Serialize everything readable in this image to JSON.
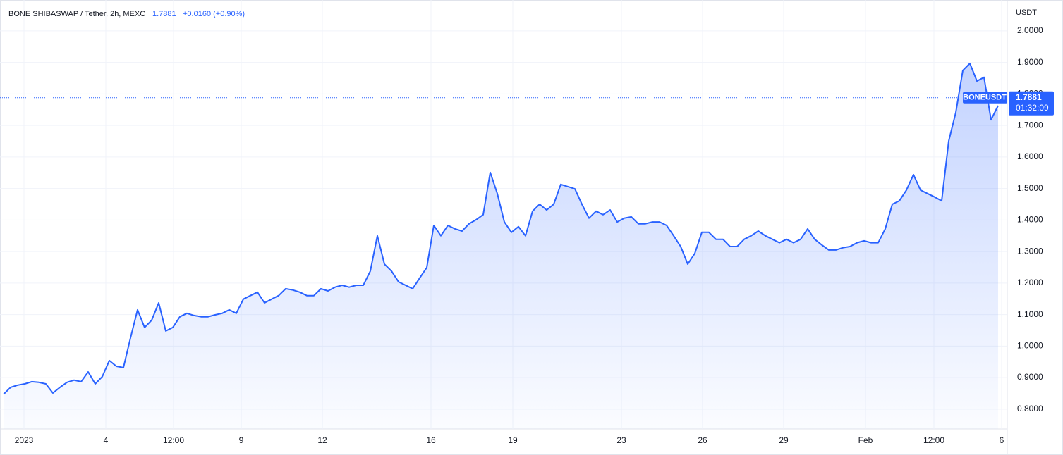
{
  "chart_data": {
    "type": "area",
    "title": "BONE SHIBASWAP / Tether, 2h, MEXC",
    "last_price": 1.7881,
    "change": "+0.0160 (+0.90%)",
    "symbol": "BONEUSDT",
    "countdown": "01:32:09",
    "y_axis_label": "USDT",
    "series": [
      {
        "name": "BONEUSDT",
        "color": "#2962ff",
        "values": [
          0.847,
          0.869,
          0.876,
          0.88,
          0.887,
          0.885,
          0.88,
          0.851,
          0.869,
          0.885,
          0.892,
          0.887,
          0.918,
          0.88,
          0.903,
          0.954,
          0.936,
          0.932,
          1.026,
          1.115,
          1.059,
          1.082,
          1.137,
          1.048,
          1.059,
          1.093,
          1.104,
          1.097,
          1.093,
          1.093,
          1.099,
          1.104,
          1.115,
          1.104,
          1.149,
          1.16,
          1.171,
          1.137,
          1.149,
          1.16,
          1.182,
          1.178,
          1.171,
          1.16,
          1.16,
          1.182,
          1.175,
          1.187,
          1.193,
          1.187,
          1.193,
          1.193,
          1.238,
          1.35,
          1.26,
          1.238,
          1.204,
          1.193,
          1.182,
          1.216,
          1.249,
          1.383,
          1.35,
          1.383,
          1.372,
          1.365,
          1.388,
          1.401,
          1.417,
          1.551,
          1.484,
          1.394,
          1.361,
          1.379,
          1.35,
          1.428,
          1.45,
          1.432,
          1.45,
          1.513,
          1.506,
          1.499,
          1.45,
          1.406,
          1.428,
          1.417,
          1.432,
          1.394,
          1.406,
          1.41,
          1.388,
          1.388,
          1.394,
          1.394,
          1.383,
          1.35,
          1.316,
          1.26,
          1.294,
          1.361,
          1.361,
          1.339,
          1.339,
          1.316,
          1.316,
          1.339,
          1.35,
          1.365,
          1.35,
          1.339,
          1.328,
          1.339,
          1.328,
          1.339,
          1.372,
          1.339,
          1.321,
          1.305,
          1.305,
          1.312,
          1.316,
          1.328,
          1.334,
          1.328,
          1.328,
          1.372,
          1.45,
          1.461,
          1.495,
          1.544,
          1.495,
          1.484,
          1.473,
          1.461,
          1.651,
          1.741,
          1.875,
          1.897,
          1.841,
          1.853,
          1.718,
          1.763
        ]
      }
    ],
    "xlim": [
      0,
      142.3
    ],
    "xticks": [
      {
        "value": 2.9,
        "label": "2023"
      },
      {
        "value": 14.5,
        "label": "4"
      },
      {
        "value": 24.1,
        "label": "12:00"
      },
      {
        "value": 33.7,
        "label": "9"
      },
      {
        "value": 45.2,
        "label": "12"
      },
      {
        "value": 60.6,
        "label": "16"
      },
      {
        "value": 72.2,
        "label": "19"
      },
      {
        "value": 87.6,
        "label": "23"
      },
      {
        "value": 99.1,
        "label": "26"
      },
      {
        "value": 110.6,
        "label": "29"
      },
      {
        "value": 122.2,
        "label": "Feb"
      },
      {
        "value": 131.9,
        "label": "12:00"
      },
      {
        "value": 141.5,
        "label": "6"
      }
    ],
    "ylim": [
      0.737,
      2.087
    ],
    "yticks": [
      {
        "value": 0.8,
        "label": "0.8000"
      },
      {
        "value": 0.9,
        "label": "0.9000"
      },
      {
        "value": 1.0,
        "label": "1.0000"
      },
      {
        "value": 1.1,
        "label": "1.1000"
      },
      {
        "value": 1.2,
        "label": "1.2000"
      },
      {
        "value": 1.3,
        "label": "1.3000"
      },
      {
        "value": 1.4,
        "label": "1.4000"
      },
      {
        "value": 1.5,
        "label": "1.5000"
      },
      {
        "value": 1.6,
        "label": "1.6000"
      },
      {
        "value": 1.7,
        "label": "1.7000"
      },
      {
        "value": 1.8,
        "label": "1.8000"
      },
      {
        "value": 1.9,
        "label": "1.9000"
      },
      {
        "value": 2.0,
        "label": "2.0000"
      }
    ],
    "grid": true
  }
}
